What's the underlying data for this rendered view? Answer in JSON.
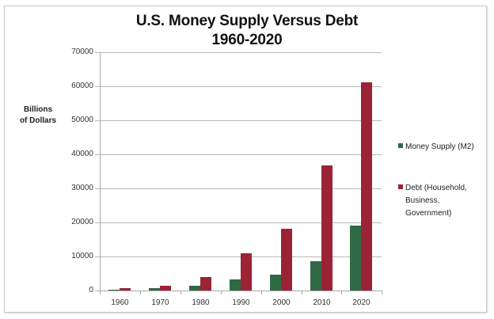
{
  "chart_data": {
    "type": "bar",
    "title": "U.S. Money Supply Versus Debt",
    "subtitle": "1960-2020",
    "xlabel": "",
    "ylabel": "Billions of Dollars",
    "ylim": [
      0,
      70000
    ],
    "yticks": [
      0,
      10000,
      20000,
      30000,
      40000,
      50000,
      60000,
      70000
    ],
    "grid": true,
    "legend_position": "right",
    "categories": [
      "1960",
      "1970",
      "1980",
      "1990",
      "2000",
      "2010",
      "2020"
    ],
    "series": [
      {
        "name": "Money Supply (M2)",
        "color": "#2f6a45",
        "values": [
          300,
          600,
          1500,
          3300,
          4700,
          8600,
          19100
        ]
      },
      {
        "name": "Debt (Household, Business, Government)",
        "color": "#9b2335",
        "values": [
          600,
          1400,
          3900,
          10900,
          18100,
          36700,
          61100
        ]
      }
    ]
  },
  "title_line1": "U.S. Money Supply Versus Debt",
  "title_line2": "1960-2020",
  "ylabel_line1": "Billions",
  "ylabel_line2": "of Dollars",
  "yticks": [
    "70000",
    "60000",
    "50000",
    "40000",
    "30000",
    "20000",
    "10000",
    "0"
  ],
  "xticks": [
    "1960",
    "1970",
    "1980",
    "1990",
    "2000",
    "2010",
    "2020"
  ],
  "legend": {
    "items": [
      {
        "label": "Money Supply (M2)",
        "color": "#2f6a45"
      },
      {
        "label": "Debt (Household, Business, Government)",
        "label_lines": [
          "Debt (Household,",
          "Business,",
          "Government)"
        ],
        "color": "#9b2335"
      }
    ]
  }
}
